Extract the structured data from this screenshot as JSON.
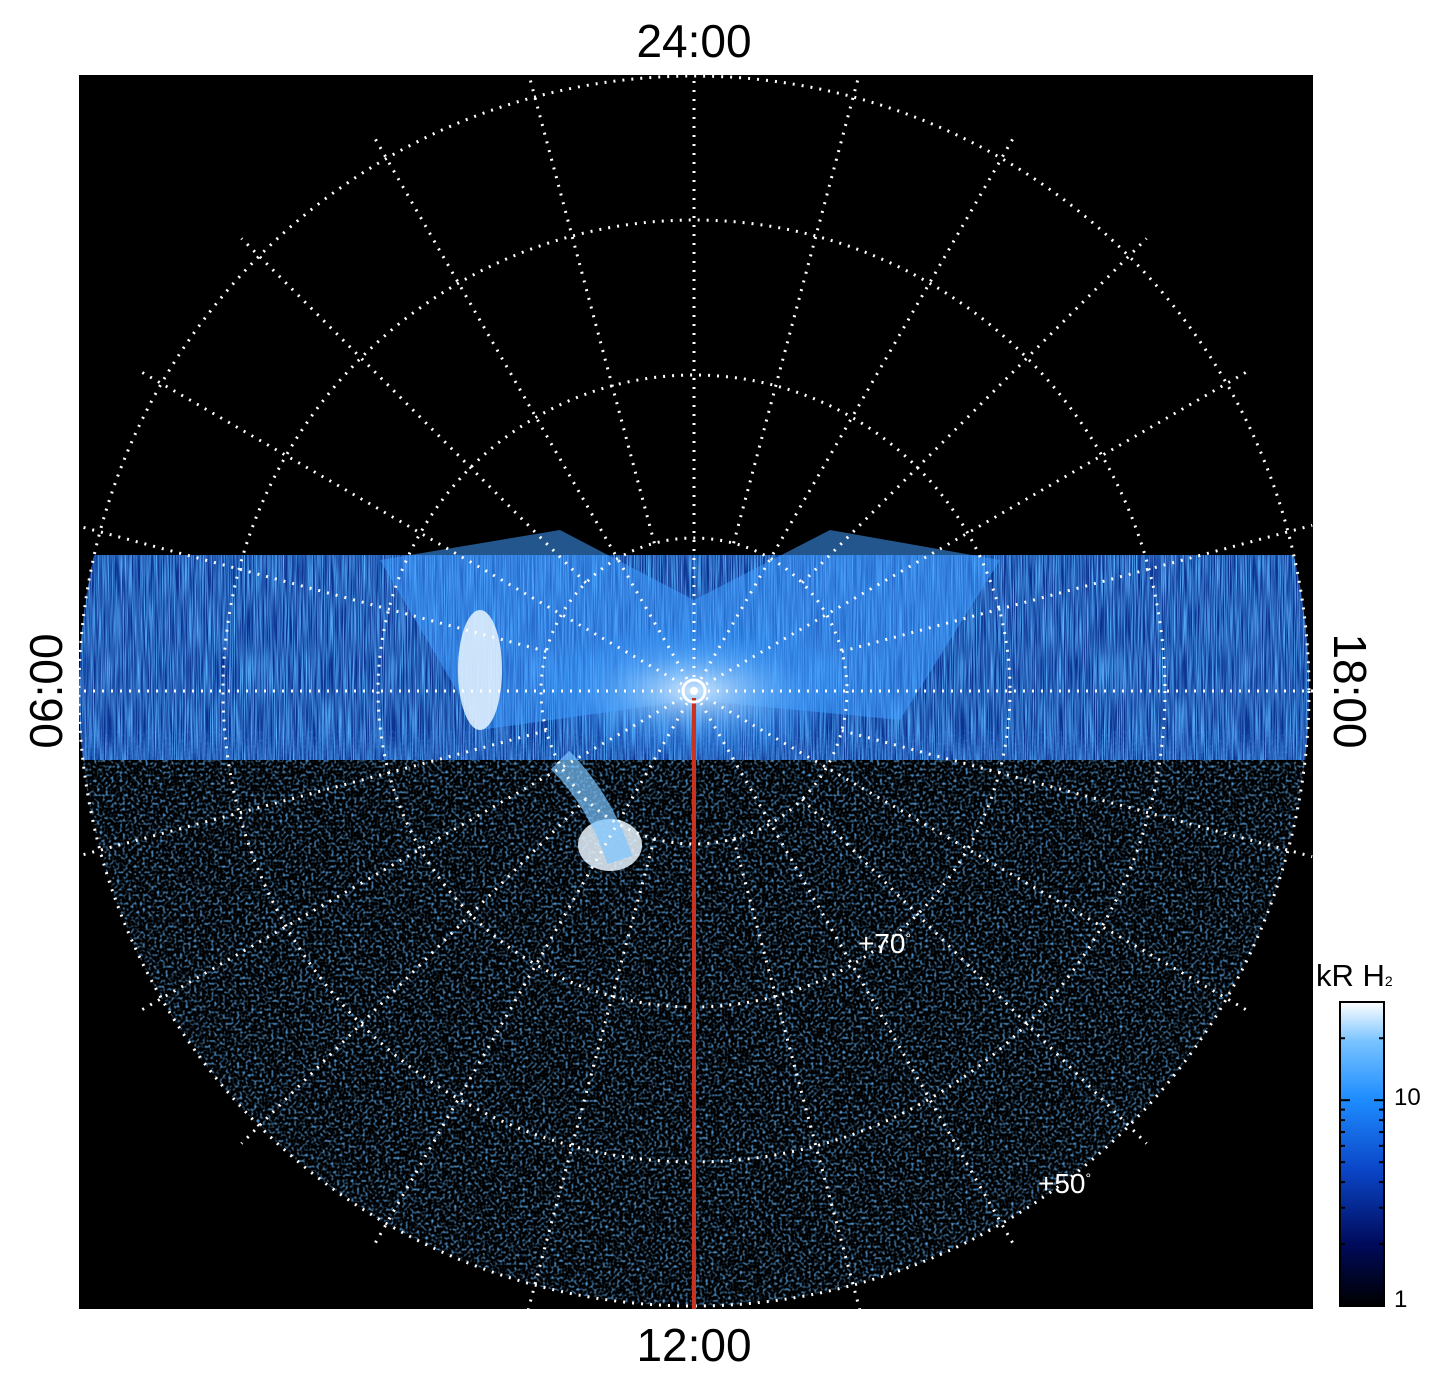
{
  "time_labels": {
    "top": "24:00",
    "bottom": "12:00",
    "left": "06:00",
    "right": "18:00"
  },
  "latitude_labels": {
    "inner": "+70",
    "outer": "+50",
    "degree_symbol": "°"
  },
  "colorbar": {
    "unit": "kR H",
    "unit_subscript": "2",
    "ticks": [
      "10",
      "1"
    ],
    "scale": "log",
    "range": [
      1,
      30
    ],
    "colors": [
      "#000000",
      "#000a5a",
      "#0a46c8",
      "#1e8cff",
      "#78c3ff",
      "#ffffff"
    ]
  },
  "colors": {
    "background": "#000000",
    "grid": "#ffffff",
    "meridian_line": "#c8321e",
    "page": "#ffffff"
  }
}
